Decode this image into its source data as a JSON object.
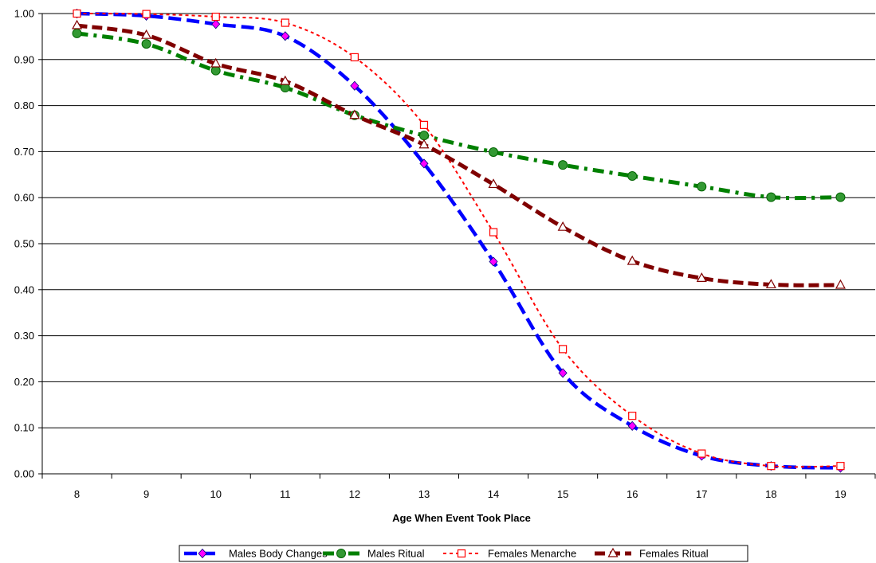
{
  "chart_data": {
    "type": "line",
    "title": "",
    "xlabel": "Age When Event Took Place",
    "ylabel": "",
    "x": [
      8,
      9,
      10,
      11,
      12,
      13,
      14,
      15,
      16,
      17,
      18,
      19
    ],
    "x_tick_labels": [
      "8",
      "9",
      "10",
      "11",
      "12",
      "13",
      "14",
      "15",
      "16",
      "17",
      "18",
      "19"
    ],
    "ylim": [
      0,
      1
    ],
    "y_ticks": [
      0,
      0.1,
      0.2,
      0.3,
      0.4,
      0.5,
      0.6,
      0.7,
      0.8,
      0.9,
      1.0
    ],
    "y_tick_labels": [
      "0.00",
      "0.10",
      "0.20",
      "0.30",
      "0.40",
      "0.50",
      "0.60",
      "0.70",
      "0.80",
      "0.90",
      "1.00"
    ],
    "grid": "horizontal",
    "legend_position": "bottom",
    "series": [
      {
        "name": "Males Body Changes",
        "color": "#0000ff",
        "marker_color": "#ff00ff",
        "marker": "diamond",
        "dash": "long-dash",
        "values": [
          1.0,
          0.995,
          0.977,
          0.951,
          0.843,
          0.674,
          0.461,
          0.219,
          0.104,
          0.039,
          0.017,
          0.013
        ]
      },
      {
        "name": "Males Ritual",
        "color": "#008000",
        "marker_color": "#339933",
        "marker": "circle",
        "dash": "dash-dot",
        "values": [
          0.957,
          0.934,
          0.876,
          0.839,
          0.779,
          0.735,
          0.699,
          0.671,
          0.647,
          0.624,
          0.601,
          0.601
        ]
      },
      {
        "name": "Females Menarche",
        "color": "#ff0000",
        "marker_color": "#ff0000",
        "marker": "square",
        "dash": "dot",
        "values": [
          1.0,
          0.999,
          0.993,
          0.98,
          0.905,
          0.758,
          0.525,
          0.271,
          0.126,
          0.044,
          0.017,
          0.017
        ]
      },
      {
        "name": "Females Ritual",
        "color": "#800000",
        "marker_color": "#800000",
        "marker": "triangle",
        "dash": "dash",
        "values": [
          0.974,
          0.953,
          0.891,
          0.853,
          0.779,
          0.715,
          0.629,
          0.536,
          0.462,
          0.425,
          0.411,
          0.41
        ]
      }
    ]
  }
}
